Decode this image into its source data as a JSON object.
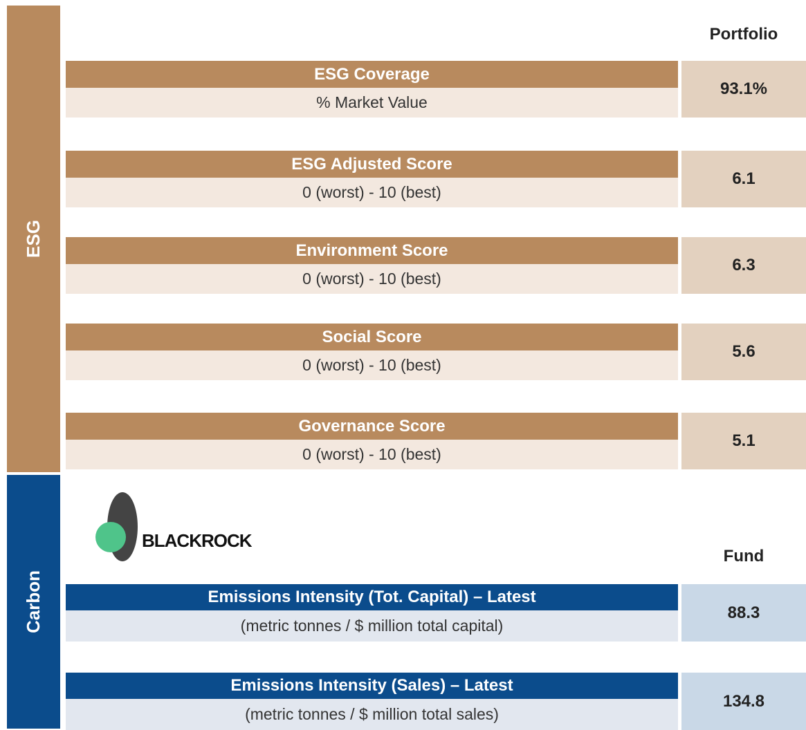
{
  "sections": [
    {
      "label": "ESG",
      "header": "Portfolio",
      "rows": [
        {
          "title": "ESG Coverage",
          "subtitle": "% Market Value",
          "value": "93.1%"
        },
        {
          "title": "ESG Adjusted Score",
          "subtitle": "0 (worst)  - 10 (best)",
          "value": "6.1"
        },
        {
          "title": "Environment Score",
          "subtitle": "0 (worst)  - 10 (best)",
          "value": "6.3"
        },
        {
          "title": "Social Score",
          "subtitle": "0 (worst)  - 10 (best)",
          "value": "5.6"
        },
        {
          "title": "Governance Score",
          "subtitle": "0 (worst)  - 10 (best)",
          "value": "5.1"
        }
      ]
    },
    {
      "label": "Carbon",
      "header": "Fund",
      "logo": "BLACKROCK",
      "rows": [
        {
          "title": "Emissions Intensity (Tot. Capital) – Latest",
          "subtitle": "(metric tonnes / $ million total capital)",
          "value": "88.3"
        },
        {
          "title": "Emissions Intensity (Sales) – Latest",
          "subtitle": "(metric tonnes / $ million total sales)",
          "value": "134.8"
        }
      ]
    }
  ]
}
